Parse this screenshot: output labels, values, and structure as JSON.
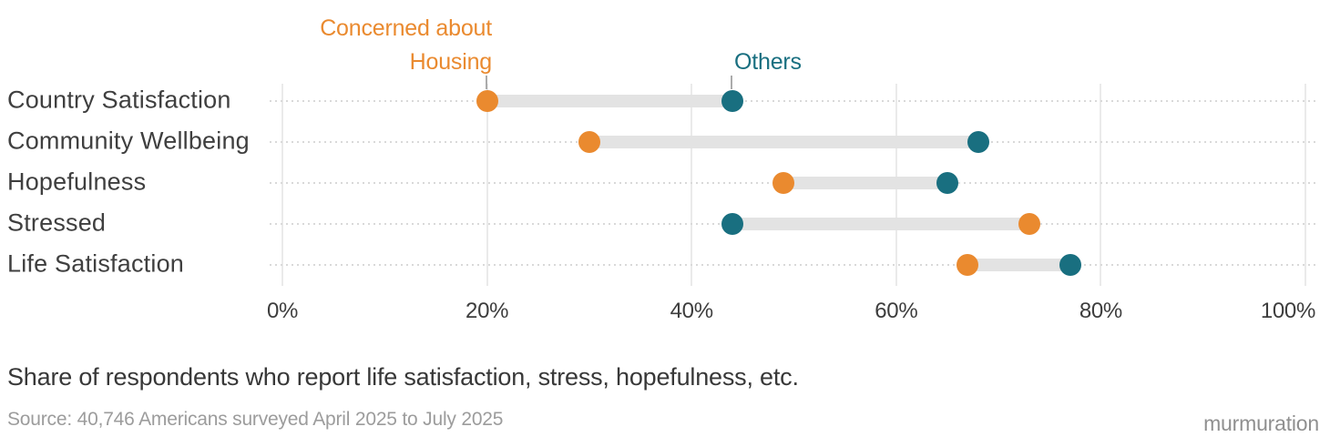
{
  "chart_data": {
    "type": "dumbbell",
    "categories": [
      "Country Satisfaction",
      "Community Wellbeing",
      "Hopefulness",
      "Stressed",
      "Life Satisfaction"
    ],
    "series": [
      {
        "name": "Concerned about Housing",
        "color": "#ea8a2f",
        "values": [
          20,
          30,
          49,
          73,
          67
        ]
      },
      {
        "name": "Others",
        "color": "#196f80",
        "values": [
          44,
          68,
          65,
          44,
          77
        ]
      }
    ],
    "x_tick_values": [
      0,
      20,
      40,
      60,
      80,
      100
    ],
    "x_tick_labels": [
      "0%",
      "20%",
      "40%",
      "60%",
      "80%",
      "100%"
    ],
    "xlim": [
      0,
      100
    ],
    "grid": "vertical",
    "legend_position": "annotations-above-first-row",
    "annotations": [
      {
        "text_lines": [
          "Concerned about",
          "Housing"
        ],
        "series": "Concerned about Housing",
        "color": "#ea8a2f",
        "points_to_pct": 20
      },
      {
        "text_lines": [
          "Others"
        ],
        "series": "Others",
        "color": "#196f80",
        "points_to_pct": 44
      }
    ],
    "connector_color": "#e3e3e3",
    "gridline_color": "#eaeaea",
    "row_dotted_line_color": "#d9d9d9"
  },
  "caption": "Share of respondents who report life satisfaction, stress, hopefulness, etc.",
  "source": "Source: 40,746 Americans surveyed April 2025 to July 2025",
  "brand": "murmuration"
}
